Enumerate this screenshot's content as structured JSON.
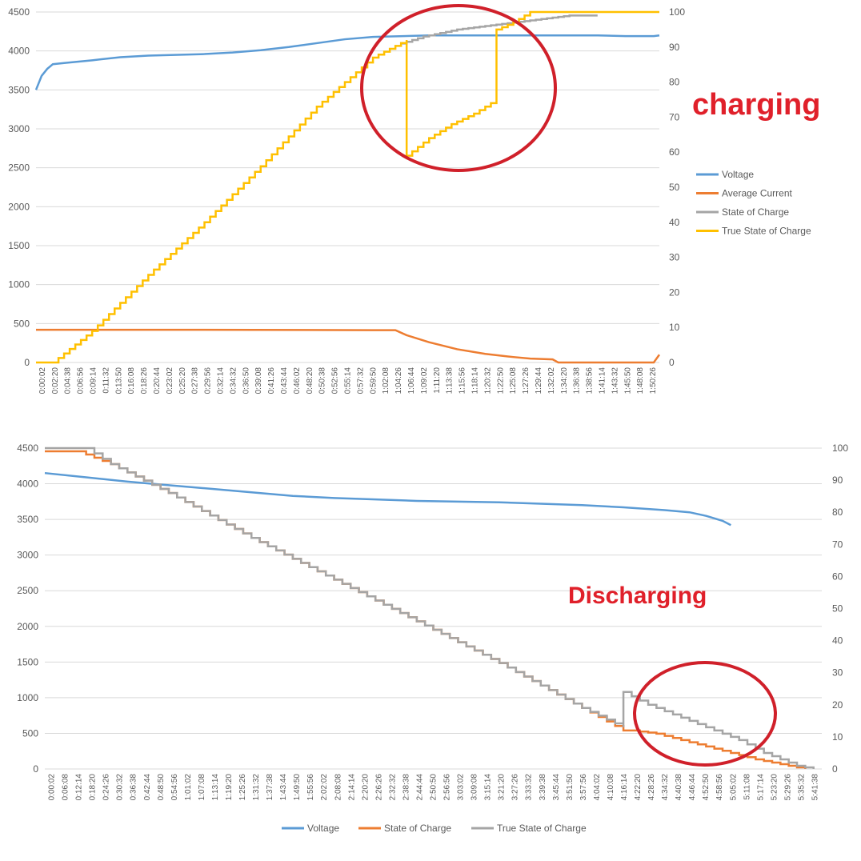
{
  "chart_data": [
    {
      "type": "line",
      "annotation": "charging",
      "x_labels": [
        "0:00:02",
        "0:02:20",
        "0:04:38",
        "0:06:56",
        "0:09:14",
        "0:11:32",
        "0:13:50",
        "0:16:08",
        "0:18:26",
        "0:20:44",
        "0:23:02",
        "0:25:20",
        "0:27:38",
        "0:29:56",
        "0:32:14",
        "0:34:32",
        "0:36:50",
        "0:39:08",
        "0:41:26",
        "0:43:44",
        "0:46:02",
        "0:48:20",
        "0:50:38",
        "0:52:56",
        "0:55:14",
        "0:57:32",
        "0:59:50",
        "1:02:08",
        "1:04:26",
        "1:06:44",
        "1:09:02",
        "1:11:20",
        "1:13:38",
        "1:15:56",
        "1:18:14",
        "1:20:32",
        "1:22:50",
        "1:25:08",
        "1:27:26",
        "1:29:44",
        "1:32:02",
        "1:34:20",
        "1:36:38",
        "1:38:56",
        "1:41:14",
        "1:43:32",
        "1:45:50",
        "1:48:08",
        "1:50:26"
      ],
      "y_left": {
        "min": 0,
        "max": 4500,
        "ticks": [
          "0",
          "500",
          "1000",
          "1500",
          "2000",
          "2500",
          "3000",
          "3500",
          "4000",
          "4500"
        ]
      },
      "y_right": {
        "min": 0,
        "max": 100,
        "ticks": [
          "0",
          "10",
          "20",
          "30",
          "40",
          "50",
          "60",
          "70",
          "80",
          "90",
          "100"
        ]
      },
      "legend_position": "right",
      "series": [
        {
          "name": "Voltage",
          "axis": "left",
          "color": "#5b9bd5",
          "points": [
            [
              0,
              3500
            ],
            [
              1,
              3680
            ],
            [
              2,
              3770
            ],
            [
              3,
              3830
            ],
            [
              5,
              3845
            ],
            [
              10,
              3880
            ],
            [
              15,
              3920
            ],
            [
              20,
              3940
            ],
            [
              30,
              3960
            ],
            [
              35,
              3980
            ],
            [
              40,
              4010
            ],
            [
              45,
              4050
            ],
            [
              50,
              4100
            ],
            [
              55,
              4150
            ],
            [
              60,
              4180
            ],
            [
              70,
              4200
            ],
            [
              100,
              4200
            ],
            [
              105,
              4190
            ],
            [
              110,
              4190
            ],
            [
              111,
              4200
            ]
          ]
        },
        {
          "name": "Average Current",
          "axis": "left",
          "color": "#ed7d31",
          "points": [
            [
              0,
              420
            ],
            [
              30,
              420
            ],
            [
              60,
              415
            ],
            [
              64,
              415
            ],
            [
              66,
              350
            ],
            [
              70,
              260
            ],
            [
              75,
              170
            ],
            [
              80,
              110
            ],
            [
              85,
              70
            ],
            [
              88,
              50
            ],
            [
              92,
              40
            ],
            [
              93,
              0
            ],
            [
              110,
              0
            ],
            [
              111,
              100
            ]
          ]
        },
        {
          "name": "State of Charge",
          "axis": "right",
          "color": "#a5a5a5",
          "points": [
            [
              65,
              91
            ],
            [
              67,
              92
            ],
            [
              69,
              93
            ],
            [
              72,
              94
            ],
            [
              75,
              95
            ],
            [
              80,
              96
            ],
            [
              85,
              97
            ],
            [
              90,
              98
            ],
            [
              95,
              99
            ],
            [
              100,
              99
            ]
          ]
        },
        {
          "name": "True State of Charge",
          "axis": "right",
          "color": "#ffc000",
          "points": [
            [
              0,
              0
            ],
            [
              3,
              0
            ],
            [
              10,
              9
            ],
            [
              20,
              25
            ],
            [
              30,
              40
            ],
            [
              40,
              56
            ],
            [
              50,
              73
            ],
            [
              60,
              87
            ],
            [
              66,
              92
            ],
            [
              66,
              59
            ],
            [
              70,
              64
            ],
            [
              74,
              68
            ],
            [
              78,
              71
            ],
            [
              82,
              75
            ],
            [
              82,
              95
            ],
            [
              85,
              97
            ],
            [
              88,
              100
            ],
            [
              111,
              100
            ]
          ]
        }
      ],
      "x_count": 111
    },
    {
      "type": "line",
      "annotation": "Discharging",
      "x_labels": [
        "0:00:02",
        "0:06:08",
        "0:12:14",
        "0:18:20",
        "0:24:26",
        "0:30:32",
        "0:36:38",
        "0:42:44",
        "0:48:50",
        "0:54:56",
        "1:01:02",
        "1:07:08",
        "1:13:14",
        "1:19:20",
        "1:25:26",
        "1:31:32",
        "1:37:38",
        "1:43:44",
        "1:49:50",
        "1:55:56",
        "2:02:02",
        "2:08:08",
        "2:14:14",
        "2:20:20",
        "2:26:26",
        "2:32:32",
        "2:38:38",
        "2:44:44",
        "2:50:50",
        "2:56:56",
        "3:03:02",
        "3:09:08",
        "3:15:14",
        "3:21:20",
        "3:27:26",
        "3:33:32",
        "3:39:38",
        "3:45:44",
        "3:51:50",
        "3:57:56",
        "4:04:02",
        "4:10:08",
        "4:16:14",
        "4:22:20",
        "4:28:26",
        "4:34:32",
        "4:40:38",
        "4:46:44",
        "4:52:50",
        "4:58:56",
        "5:05:02",
        "5:11:08",
        "5:17:14",
        "5:23:20",
        "5:29:26",
        "5:35:32",
        "5:41:38"
      ],
      "y_left": {
        "min": 0,
        "max": 4500,
        "ticks": [
          "0",
          "500",
          "1000",
          "1500",
          "2000",
          "2500",
          "3000",
          "3500",
          "4000",
          "4500"
        ]
      },
      "y_right": {
        "min": 0,
        "max": 100,
        "ticks": [
          "0",
          "10",
          "20",
          "30",
          "40",
          "50",
          "60",
          "70",
          "80",
          "90",
          "100"
        ]
      },
      "legend_position": "bottom",
      "series": [
        {
          "name": "Voltage",
          "axis": "left",
          "color": "#5b9bd5",
          "points": [
            [
              0,
              4150
            ],
            [
              5,
              4090
            ],
            [
              10,
              4030
            ],
            [
              15,
              3980
            ],
            [
              20,
              3930
            ],
            [
              25,
              3880
            ],
            [
              30,
              3830
            ],
            [
              35,
              3800
            ],
            [
              40,
              3780
            ],
            [
              45,
              3760
            ],
            [
              50,
              3750
            ],
            [
              55,
              3740
            ],
            [
              60,
              3720
            ],
            [
              65,
              3700
            ],
            [
              70,
              3670
            ],
            [
              75,
              3630
            ],
            [
              78,
              3600
            ],
            [
              80,
              3550
            ],
            [
              82,
              3480
            ],
            [
              83,
              3420
            ]
          ]
        },
        {
          "name": "State of Charge",
          "axis": "right",
          "color": "#ed7d31",
          "points": [
            [
              0,
              99
            ],
            [
              4,
              99
            ],
            [
              8,
              95
            ],
            [
              15,
              86
            ],
            [
              25,
              72
            ],
            [
              35,
              59
            ],
            [
              45,
              46
            ],
            [
              55,
              33
            ],
            [
              60,
              26
            ],
            [
              65,
              19
            ],
            [
              70,
              12
            ],
            [
              71,
              12
            ],
            [
              74,
              11
            ],
            [
              77,
              9
            ],
            [
              80,
              7
            ],
            [
              83,
              5
            ],
            [
              86,
              3
            ],
            [
              88,
              2
            ],
            [
              90,
              1
            ],
            [
              92,
              0
            ]
          ]
        },
        {
          "name": "True State of Charge",
          "axis": "right",
          "color": "#a5a5a5",
          "points": [
            [
              0,
              100
            ],
            [
              5,
              100
            ],
            [
              8,
              95
            ],
            [
              15,
              86
            ],
            [
              25,
              72
            ],
            [
              35,
              59
            ],
            [
              45,
              46
            ],
            [
              55,
              33
            ],
            [
              60,
              26
            ],
            [
              65,
              19
            ],
            [
              70,
              13
            ],
            [
              70,
              24
            ],
            [
              73,
              20
            ],
            [
              77,
              16
            ],
            [
              80,
              13
            ],
            [
              84,
              9
            ],
            [
              87,
              5
            ],
            [
              89,
              3
            ],
            [
              91,
              1
            ],
            [
              93,
              0
            ]
          ]
        }
      ],
      "x_count": 94
    }
  ]
}
